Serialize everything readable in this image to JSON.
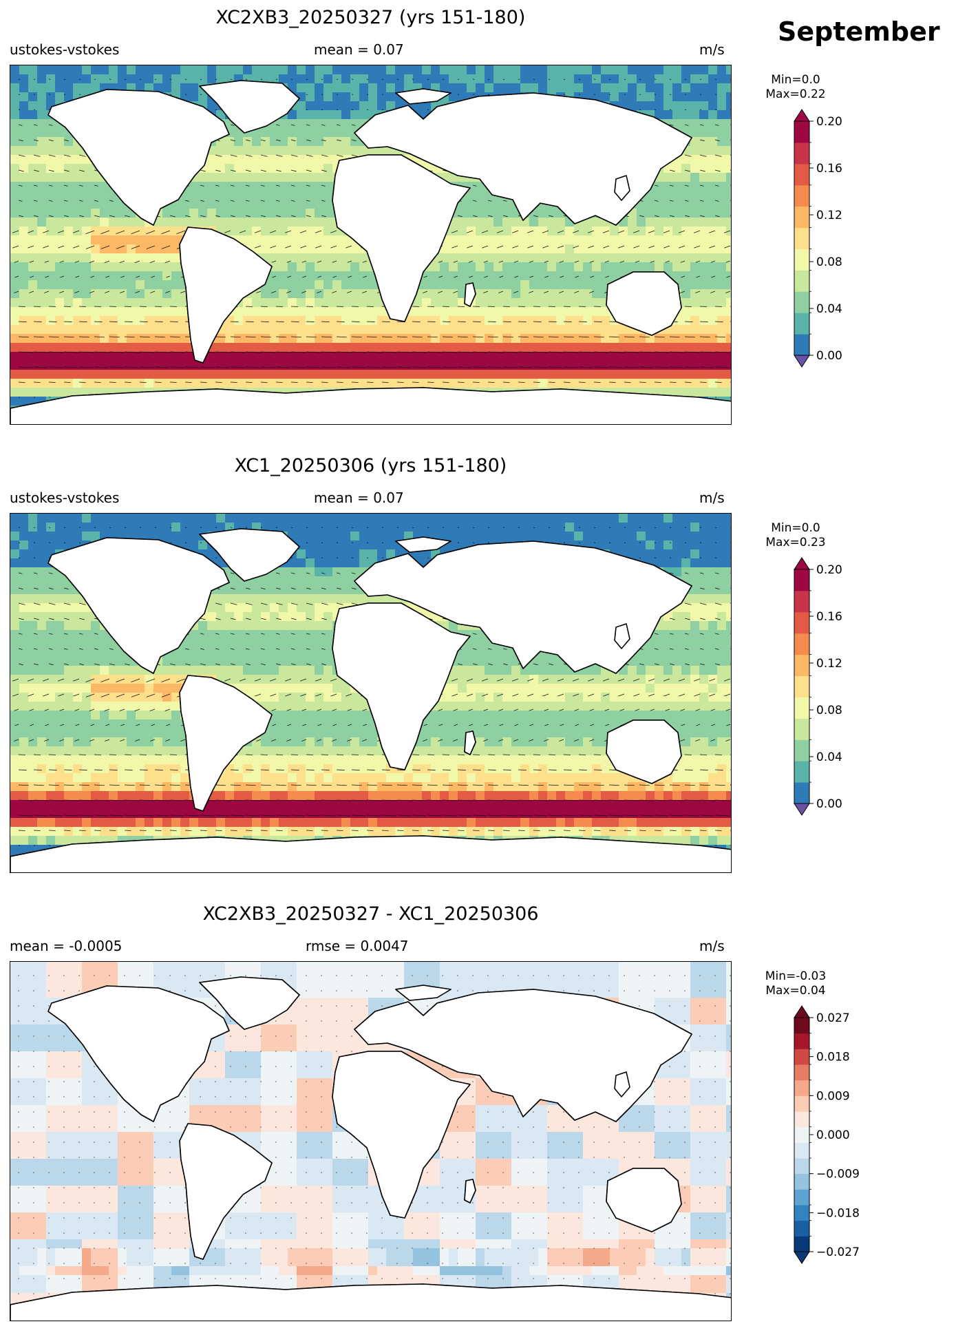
{
  "month": "September",
  "units": "m/s",
  "panels": [
    {
      "title": "XC2XB3_20250327 (yrs 151-180)",
      "left_label": "ustokes-vstokes",
      "center_label": "mean = 0.07",
      "right_label": "m/s",
      "min_label": "Min=0.0",
      "max_label": "Max=0.22",
      "colorbar": {
        "ticks": [
          "0.20",
          "0.16",
          "0.12",
          "0.08",
          "0.04",
          "0.00"
        ],
        "colors": [
          "#2f7bb7",
          "#5ab3a9",
          "#8fd0a3",
          "#c9e89d",
          "#f1f8a9",
          "#fedf8c",
          "#fdb866",
          "#f68b4f",
          "#e45b45",
          "#c8344a",
          "#9d0742"
        ],
        "over_color": "#9d0742",
        "under_color": "#6a51a3"
      }
    },
    {
      "title": "XC1_20250306 (yrs 151-180)",
      "left_label": "ustokes-vstokes",
      "center_label": "mean = 0.07",
      "right_label": "m/s",
      "min_label": "Min=0.0",
      "max_label": "Max=0.23",
      "colorbar": {
        "ticks": [
          "0.20",
          "0.16",
          "0.12",
          "0.08",
          "0.04",
          "0.00"
        ],
        "colors": [
          "#2f7bb7",
          "#5ab3a9",
          "#8fd0a3",
          "#c9e89d",
          "#f1f8a9",
          "#fedf8c",
          "#fdb866",
          "#f68b4f",
          "#e45b45",
          "#c8344a",
          "#9d0742"
        ],
        "over_color": "#9d0742",
        "under_color": "#6a51a3"
      }
    },
    {
      "title": "XC2XB3_20250327 - XC1_20250306",
      "left_label": "mean = -0.0005",
      "center_label": "rmse = 0.0047",
      "right_label": "m/s",
      "min_label": "Min=-0.03",
      "max_label": "Max=0.04",
      "colorbar": {
        "ticks": [
          "0.027",
          "0.018",
          "0.009",
          "0.000",
          "−0.009",
          "−0.018",
          "−0.027"
        ],
        "colors": [
          "#083a7a",
          "#1a5ea4",
          "#3383c0",
          "#5fa3d0",
          "#93c3df",
          "#bad8ea",
          "#d9e8f2",
          "#eef3f6",
          "#fbe7de",
          "#fbcdb6",
          "#f5a98a",
          "#e77c64",
          "#cf4a45",
          "#a6172b",
          "#6d0a1e"
        ],
        "over_color": "#6d0a1e",
        "under_color": "#083a7a"
      }
    }
  ]
}
